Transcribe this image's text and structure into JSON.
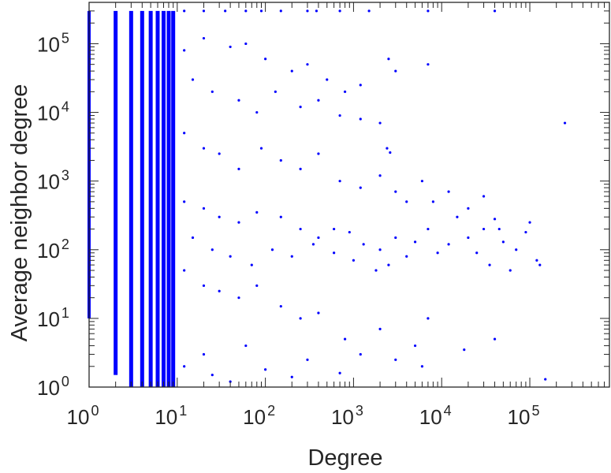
{
  "chart_data": {
    "type": "scatter",
    "title": "",
    "xlabel": "Degree",
    "ylabel": "Average neighbor degree",
    "x_scale": "log",
    "y_scale": "log",
    "xlim": [
      1,
      800000
    ],
    "ylim": [
      1,
      400000
    ],
    "grid": false,
    "legend": "none",
    "marker_color": "#0000ff",
    "x_ticks": [
      {
        "base": "10",
        "exp": "0"
      },
      {
        "base": "10",
        "exp": "1"
      },
      {
        "base": "10",
        "exp": "2"
      },
      {
        "base": "10",
        "exp": "3"
      },
      {
        "base": "10",
        "exp": "4"
      },
      {
        "base": "10",
        "exp": "5"
      }
    ],
    "y_ticks": [
      {
        "base": "10",
        "exp": "0"
      },
      {
        "base": "10",
        "exp": "1"
      },
      {
        "base": "10",
        "exp": "2"
      },
      {
        "base": "10",
        "exp": "3"
      },
      {
        "base": "10",
        "exp": "4"
      },
      {
        "base": "10",
        "exp": "5"
      }
    ],
    "dense_columns": [
      {
        "x": 1,
        "y_range": [
          10,
          300000
        ]
      },
      {
        "x": 2,
        "y_range": [
          1.5,
          300000
        ]
      },
      {
        "x": 3,
        "y_range": [
          1,
          300000
        ]
      },
      {
        "x": 4,
        "y_range": [
          1,
          300000
        ]
      },
      {
        "x": 5,
        "y_range": [
          1,
          300000
        ]
      },
      {
        "x": 6,
        "y_range": [
          1,
          300000
        ]
      },
      {
        "x": 7,
        "y_range": [
          1,
          300000
        ]
      },
      {
        "x": 8,
        "y_range": [
          1,
          300000
        ]
      },
      {
        "x": 9,
        "y_range": [
          1,
          300000
        ]
      }
    ],
    "series": [
      {
        "points": [
          [
            12,
            300000
          ],
          [
            20,
            300000
          ],
          [
            35,
            300000
          ],
          [
            60,
            300000
          ],
          [
            90,
            300000
          ],
          [
            150,
            300000
          ],
          [
            300,
            300000
          ],
          [
            380,
            300000
          ],
          [
            700,
            300000
          ],
          [
            1500,
            300000
          ],
          [
            7000,
            300000
          ],
          [
            40000,
            300000
          ],
          [
            12,
            80000
          ],
          [
            20,
            120000
          ],
          [
            40,
            90000
          ],
          [
            60,
            100000
          ],
          [
            100,
            60000
          ],
          [
            200,
            40000
          ],
          [
            300,
            50000
          ],
          [
            500,
            30000
          ],
          [
            800,
            20000
          ],
          [
            1200,
            25000
          ],
          [
            2500,
            60000
          ],
          [
            3000,
            40000
          ],
          [
            7000,
            50000
          ],
          [
            15,
            30000
          ],
          [
            25,
            20000
          ],
          [
            50,
            15000
          ],
          [
            80,
            10000
          ],
          [
            130,
            20000
          ],
          [
            250,
            12000
          ],
          [
            400,
            15000
          ],
          [
            700,
            9000
          ],
          [
            1200,
            8000
          ],
          [
            2000,
            7000
          ],
          [
            2400,
            3000
          ],
          [
            2600,
            2600
          ],
          [
            12,
            5000
          ],
          [
            20,
            3000
          ],
          [
            30,
            2500
          ],
          [
            50,
            1500
          ],
          [
            90,
            3000
          ],
          [
            150,
            2000
          ],
          [
            250,
            1500
          ],
          [
            400,
            2500
          ],
          [
            700,
            1000
          ],
          [
            1200,
            800
          ],
          [
            2000,
            1200
          ],
          [
            3000,
            700
          ],
          [
            4000,
            500
          ],
          [
            6000,
            1000
          ],
          [
            250000,
            7000
          ],
          [
            12,
            500
          ],
          [
            20,
            400
          ],
          [
            30,
            300
          ],
          [
            50,
            250
          ],
          [
            80,
            350
          ],
          [
            150,
            300
          ],
          [
            250,
            200
          ],
          [
            400,
            150
          ],
          [
            600,
            200
          ],
          [
            900,
            180
          ],
          [
            1300,
            120
          ],
          [
            2000,
            100
          ],
          [
            3000,
            150
          ],
          [
            4000,
            80
          ],
          [
            5000,
            130
          ],
          [
            7000,
            200
          ],
          [
            9000,
            90
          ],
          [
            12000,
            120
          ],
          [
            15000,
            300
          ],
          [
            20000,
            150
          ],
          [
            25000,
            90
          ],
          [
            30000,
            200
          ],
          [
            35000,
            60
          ],
          [
            40000,
            280
          ],
          [
            50000,
            130
          ],
          [
            60000,
            50
          ],
          [
            70000,
            100
          ],
          [
            90000,
            180
          ],
          [
            100000,
            250
          ],
          [
            120000,
            70
          ],
          [
            130000,
            60
          ],
          [
            15,
            150
          ],
          [
            25,
            100
          ],
          [
            40,
            80
          ],
          [
            70,
            60
          ],
          [
            120,
            100
          ],
          [
            200,
            80
          ],
          [
            350,
            120
          ],
          [
            600,
            90
          ],
          [
            1000,
            70
          ],
          [
            1800,
            50
          ],
          [
            2500,
            60
          ],
          [
            8000,
            500
          ],
          [
            12000,
            700
          ],
          [
            20000,
            400
          ],
          [
            30000,
            600
          ],
          [
            45000,
            200
          ],
          [
            12,
            50
          ],
          [
            20,
            30
          ],
          [
            30,
            25
          ],
          [
            50,
            20
          ],
          [
            80,
            30
          ],
          [
            150,
            15
          ],
          [
            250,
            10
          ],
          [
            400,
            12
          ],
          [
            800,
            5
          ],
          [
            1200,
            3
          ],
          [
            2000,
            7
          ],
          [
            3000,
            2.5
          ],
          [
            5000,
            4
          ],
          [
            6000,
            2
          ],
          [
            7000,
            10
          ],
          [
            18000,
            3.5
          ],
          [
            40000,
            5
          ],
          [
            150000,
            1.3
          ],
          [
            12,
            2
          ],
          [
            20,
            3
          ],
          [
            25,
            1.5
          ],
          [
            40,
            1.2
          ],
          [
            60,
            4
          ],
          [
            100,
            1.8
          ],
          [
            200,
            1.4
          ],
          [
            300,
            2.5
          ],
          [
            700,
            1.6
          ]
        ]
      }
    ]
  }
}
